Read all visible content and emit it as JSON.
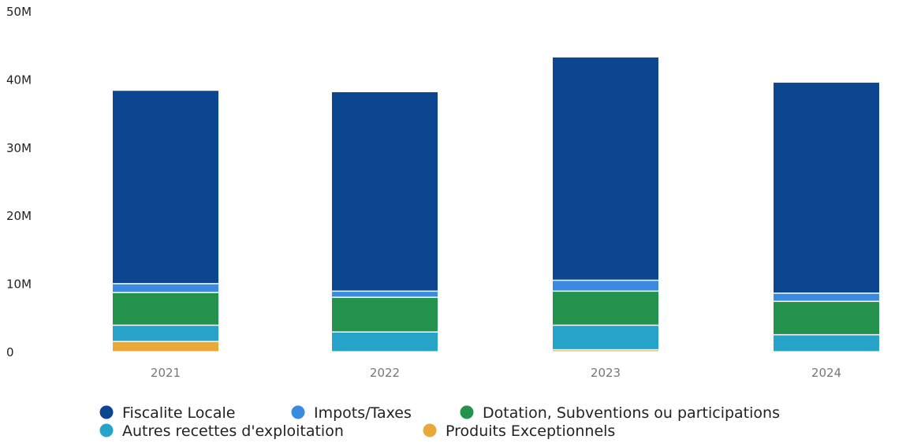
{
  "chart_data": {
    "type": "bar",
    "stacked": true,
    "title": "",
    "xlabel": "",
    "ylabel": "",
    "categories": [
      "2021",
      "2022",
      "2023",
      "2024"
    ],
    "y_ticks": [
      {
        "value": 0,
        "label": "0"
      },
      {
        "value": 10000000,
        "label": "10M"
      },
      {
        "value": 20000000,
        "label": "20M"
      },
      {
        "value": 30000000,
        "label": "30M"
      },
      {
        "value": 40000000,
        "label": "40M"
      },
      {
        "value": 50000000,
        "label": "50M"
      }
    ],
    "ylim": [
      0,
      50000000
    ],
    "grid": false,
    "legend_position": "bottom",
    "stack_order": [
      "Produits Exceptionnels",
      "Autres recettes d'exploitation",
      "Dotation, Subventions ou participations",
      "Impots/Taxes",
      "Fiscalite Locale"
    ],
    "series": [
      {
        "name": "Fiscalite Locale",
        "color": "#0d4690",
        "values": [
          28400000,
          29300000,
          32800000,
          31000000
        ]
      },
      {
        "name": "Impots/Taxes",
        "color": "#3a8be0",
        "values": [
          1300000,
          900000,
          1600000,
          1200000
        ]
      },
      {
        "name": "Dotation, Subventions ou participations",
        "color": "#23924c",
        "values": [
          4800000,
          5100000,
          5000000,
          4900000
        ]
      },
      {
        "name": "Autres recettes d'exploitation",
        "color": "#27a3c9",
        "values": [
          2400000,
          2900000,
          3600000,
          2500000
        ]
      },
      {
        "name": "Produits Exceptionnels",
        "color": "#eaa83a",
        "values": [
          1500000,
          0,
          300000,
          0
        ]
      }
    ]
  },
  "legend": {
    "row1": [
      {
        "label": "Fiscalite Locale",
        "color": "#0d4690"
      },
      {
        "label": "Impots/Taxes",
        "color": "#3a8be0"
      },
      {
        "label": "Dotation, Subventions ou participations",
        "color": "#23924c"
      }
    ],
    "row2": [
      {
        "label": "Autres recettes d'exploitation",
        "color": "#27a3c9"
      },
      {
        "label": "Produits Exceptionnels",
        "color": "#eaa83a"
      }
    ]
  }
}
